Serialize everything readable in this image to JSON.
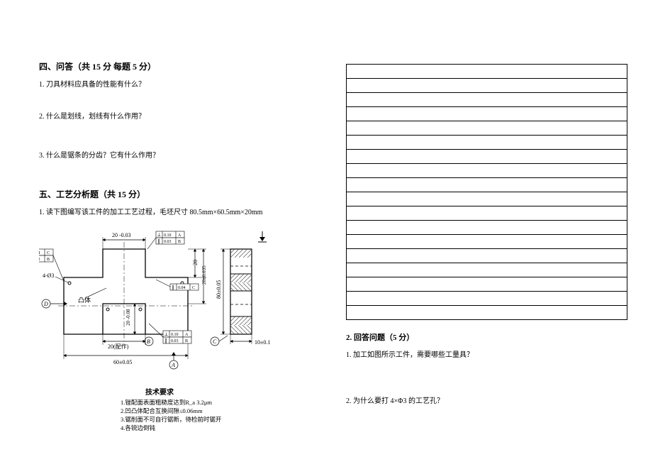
{
  "section4": {
    "heading": "四、问答（共 15 分 每题 5 分）",
    "q1": "1. 刀具材料应具备的性能有什么？",
    "q2": "2. 什么是划线，划线有什么作用？",
    "q3": "3.  什么是锯条的分齿？它有什么作用？"
  },
  "section5": {
    "heading": "五、工艺分析题（共 15 分）",
    "q1": "1. 读下图编写该工件的加工工艺过程，毛坯尺寸 80.5mm×60.5mm×20mm"
  },
  "section5b": {
    "heading": "2. 回答问题（5 分）",
    "q1": "1. 加工如图所示工件，需要哪些工量具？",
    "q2": "2. 为什么要打 4×Φ3 的工艺孔？"
  },
  "answer_rows": 18,
  "diagram": {
    "dims": {
      "d20a": "20 -0.03",
      "tol_010A": "0.10 A",
      "tol_003B": "0.03 B",
      "tol_004C1": "0.04 C",
      "tol_003B2": "0.03 B",
      "holes": "4-Ø3",
      "male": "凸体",
      "d20_2": "20",
      "d20_035": "20±0.035",
      "tol_004C2": "0.04 C",
      "d20_fit": "20(配作)",
      "tol_010A2": "0.10 A",
      "tol_003B3": "0.03 B",
      "d60": "60±0.05",
      "d80": "80±0.05",
      "d10": "10±0.1",
      "d20_008": "20 -0.08",
      "A": "A",
      "B": "B",
      "C": "C",
      "D": "D"
    },
    "tech_title": "技术要求",
    "tech1": "1.锉配面表面粗糙度达到R_a 3.2μm",
    "tech2": "2.凹凸体配合互换间隙≤0.06mm",
    "tech3": "3.锯削面不可自行锯断，待检前时锯开",
    "tech4": "4.各锐边倒钝"
  },
  "colors": {
    "line": "#000000",
    "hatch": "#666666",
    "bg": "#ffffff"
  }
}
